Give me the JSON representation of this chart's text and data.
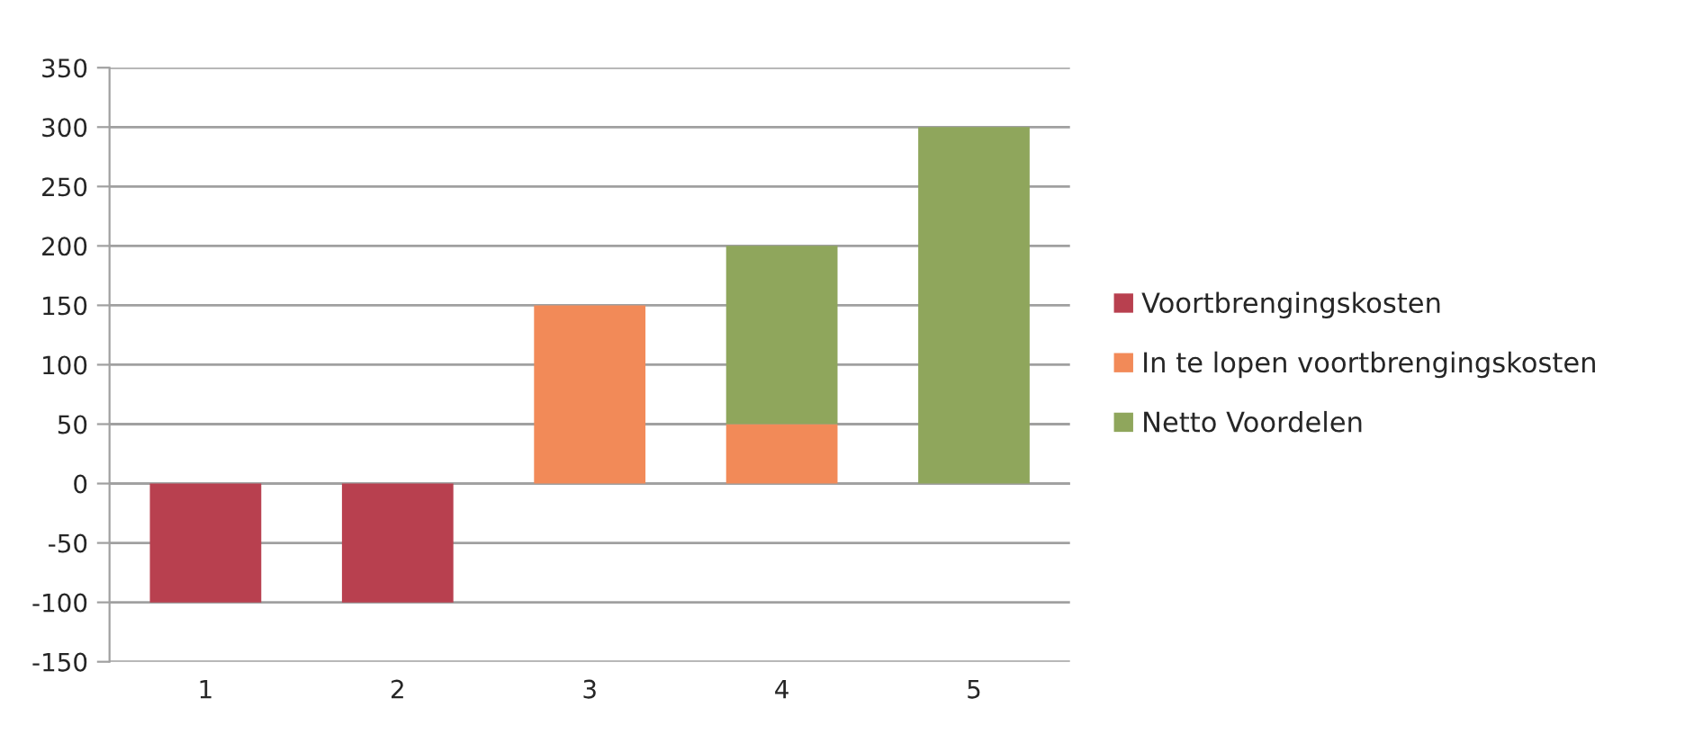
{
  "chart_data": {
    "type": "bar",
    "stacked": true,
    "categories": [
      "1",
      "2",
      "3",
      "4",
      "5"
    ],
    "series": [
      {
        "name": "Voortbrengingskosten",
        "color": "#b8404f",
        "values": [
          -100,
          -100,
          null,
          null,
          null
        ]
      },
      {
        "name": "In te lopen voortbrengingskosten",
        "color": "#f28a58",
        "values": [
          null,
          null,
          150,
          50,
          null
        ]
      },
      {
        "name": "Netto Voordelen",
        "color": "#8fa65c",
        "values": [
          null,
          null,
          null,
          150,
          300
        ]
      }
    ],
    "ylim": [
      -150,
      350
    ],
    "yticks": [
      -150,
      -100,
      -50,
      0,
      50,
      100,
      150,
      200,
      250,
      300,
      350
    ],
    "grid": "y",
    "legend": "right"
  }
}
